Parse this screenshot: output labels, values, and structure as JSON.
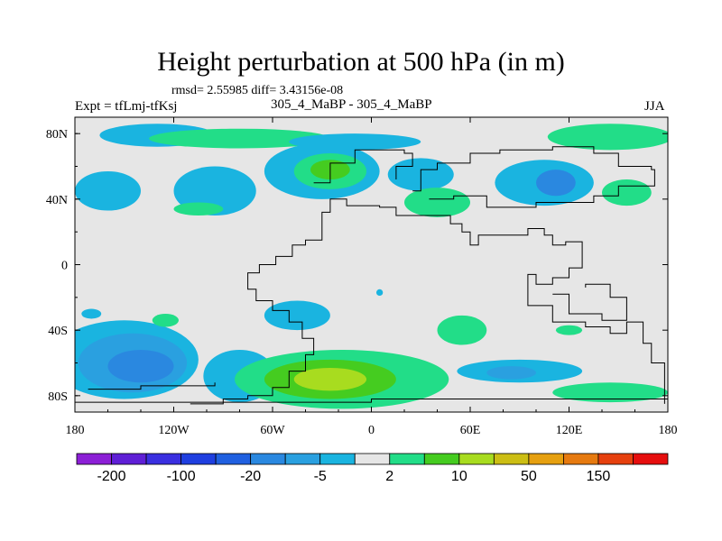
{
  "title": "Height perturbation at 500 hPa (in m)",
  "stats": "rmsd= 2.55985 diff= 3.43156e-08",
  "left_label": "Expt = tfLmj-tfKsj",
  "center_label": "305_4_MaBP - 305_4_MaBP",
  "right_label": "JJA",
  "map": {
    "lon_range": [
      -180,
      180
    ],
    "lat_range": [
      -90,
      90
    ],
    "background_color": "#e6e6e6",
    "lon_ticks": [
      {
        "value": -180,
        "label": "180"
      },
      {
        "value": -120,
        "label": "120W"
      },
      {
        "value": -60,
        "label": "60W"
      },
      {
        "value": 0,
        "label": "0"
      },
      {
        "value": 60,
        "label": "60E"
      },
      {
        "value": 120,
        "label": "120E"
      },
      {
        "value": 180,
        "label": "180"
      }
    ],
    "lat_ticks": [
      {
        "value": 80,
        "label": "80N"
      },
      {
        "value": 40,
        "label": "40N"
      },
      {
        "value": 0,
        "label": "0"
      },
      {
        "value": -40,
        "label": "40S"
      },
      {
        "value": -80,
        "label": "80S"
      }
    ]
  },
  "colorbar": {
    "colors": [
      "#8c1fd6",
      "#5f1fd6",
      "#3a2fe0",
      "#1f3fe0",
      "#2060e0",
      "#2a88e0",
      "#2aa0e0",
      "#1ab4e0",
      "#e6e6e6",
      "#22dd88",
      "#45cc20",
      "#a8dc1f",
      "#ccbe14",
      "#e6a010",
      "#e67a10",
      "#e6400e",
      "#e60e0e"
    ],
    "labels": [
      "-200",
      "-100",
      "-20",
      "-5",
      "2",
      "10",
      "50",
      "150"
    ]
  },
  "field_blobs": [
    {
      "lon": -130,
      "lat": 79,
      "rlon": 35,
      "rlat": 7,
      "color": "#1ab4e0"
    },
    {
      "lon": -80,
      "lat": 77,
      "rlon": 55,
      "rlat": 6,
      "color": "#22dd88"
    },
    {
      "lon": -10,
      "lat": 75,
      "rlon": 40,
      "rlat": 5,
      "color": "#1ab4e0"
    },
    {
      "lon": 145,
      "lat": 78,
      "rlon": 38,
      "rlat": 8,
      "color": "#22dd88"
    },
    {
      "lon": -160,
      "lat": 45,
      "rlon": 20,
      "rlat": 12,
      "color": "#1ab4e0"
    },
    {
      "lon": -95,
      "lat": 45,
      "rlon": 25,
      "rlat": 15,
      "color": "#1ab4e0"
    },
    {
      "lon": -105,
      "lat": 34,
      "rlon": 15,
      "rlat": 4,
      "color": "#22dd88"
    },
    {
      "lon": -30,
      "lat": 57,
      "rlon": 35,
      "rlat": 17,
      "color": "#1ab4e0"
    },
    {
      "lon": -25,
      "lat": 57,
      "rlon": 22,
      "rlat": 11,
      "color": "#22dd88"
    },
    {
      "lon": -25,
      "lat": 58,
      "rlon": 12,
      "rlat": 6,
      "color": "#45cc20"
    },
    {
      "lon": 30,
      "lat": 55,
      "rlon": 20,
      "rlat": 10,
      "color": "#1ab4e0"
    },
    {
      "lon": 40,
      "lat": 38,
      "rlon": 20,
      "rlat": 9,
      "color": "#22dd88"
    },
    {
      "lon": 105,
      "lat": 50,
      "rlon": 30,
      "rlat": 14,
      "color": "#1ab4e0"
    },
    {
      "lon": 112,
      "lat": 50,
      "rlon": 12,
      "rlat": 8,
      "color": "#2a88e0"
    },
    {
      "lon": 155,
      "lat": 44,
      "rlon": 15,
      "rlat": 8,
      "color": "#22dd88"
    },
    {
      "lon": -45,
      "lat": -31,
      "rlon": 20,
      "rlat": 9,
      "color": "#1ab4e0"
    },
    {
      "lon": -150,
      "lat": -58,
      "rlon": 45,
      "rlat": 24,
      "color": "#1ab4e0"
    },
    {
      "lon": -145,
      "lat": -60,
      "rlon": 33,
      "rlat": 18,
      "color": "#2aa0e0"
    },
    {
      "lon": -140,
      "lat": -62,
      "rlon": 20,
      "rlat": 10,
      "color": "#2a88e0"
    },
    {
      "lon": -80,
      "lat": -68,
      "rlon": 22,
      "rlat": 16,
      "color": "#1ab4e0"
    },
    {
      "lon": -18,
      "lat": -70,
      "rlon": 65,
      "rlat": 18,
      "color": "#22dd88"
    },
    {
      "lon": -25,
      "lat": -70,
      "rlon": 40,
      "rlat": 12,
      "color": "#45cc20"
    },
    {
      "lon": -25,
      "lat": -70,
      "rlon": 22,
      "rlat": 7,
      "color": "#a8dc1f"
    },
    {
      "lon": -125,
      "lat": -34,
      "rlon": 8,
      "rlat": 4,
      "color": "#22dd88"
    },
    {
      "lon": -170,
      "lat": -30,
      "rlon": 6,
      "rlat": 3,
      "color": "#1ab4e0"
    },
    {
      "lon": 55,
      "lat": -40,
      "rlon": 15,
      "rlat": 9,
      "color": "#22dd88"
    },
    {
      "lon": 90,
      "lat": -65,
      "rlon": 38,
      "rlat": 7,
      "color": "#1ab4e0"
    },
    {
      "lon": 85,
      "lat": -66,
      "rlon": 15,
      "rlat": 4,
      "color": "#2aa0e0"
    },
    {
      "lon": 145,
      "lat": -78,
      "rlon": 35,
      "rlat": 6,
      "color": "#22dd88"
    },
    {
      "lon": 120,
      "lat": -40,
      "rlon": 8,
      "rlat": 3,
      "color": "#22dd88"
    },
    {
      "lon": 5,
      "lat": -17,
      "rlon": 2,
      "rlat": 2,
      "color": "#1ab4e0"
    }
  ],
  "continents": [
    [
      [
        -110,
        -85
      ],
      [
        -90,
        -82
      ],
      [
        -75,
        -80
      ],
      [
        -60,
        -75
      ],
      [
        -50,
        -65
      ],
      [
        -40,
        -55
      ],
      [
        -35,
        -45
      ],
      [
        -42,
        -35
      ],
      [
        -50,
        -28
      ],
      [
        -60,
        -22
      ],
      [
        -70,
        -15
      ],
      [
        -75,
        -5
      ],
      [
        -68,
        0
      ],
      [
        -58,
        5
      ],
      [
        -48,
        12
      ],
      [
        -40,
        15
      ],
      [
        -30,
        32
      ],
      [
        -25,
        40
      ],
      [
        -15,
        36
      ],
      [
        5,
        35
      ],
      [
        15,
        30
      ],
      [
        35,
        30
      ],
      [
        48,
        25
      ],
      [
        55,
        20
      ],
      [
        60,
        12
      ],
      [
        65,
        18
      ],
      [
        75,
        18
      ],
      [
        95,
        22
      ],
      [
        105,
        18
      ],
      [
        110,
        12
      ],
      [
        118,
        14
      ],
      [
        128,
        -2
      ],
      [
        120,
        -8
      ],
      [
        110,
        -12
      ],
      [
        100,
        -6
      ],
      [
        95,
        -25
      ],
      [
        110,
        -35
      ],
      [
        130,
        -38
      ],
      [
        145,
        -42
      ],
      [
        155,
        -35
      ],
      [
        165,
        -48
      ],
      [
        170,
        -60
      ],
      [
        178,
        -70
      ],
      [
        178,
        -85
      ]
    ],
    [
      [
        25,
        45
      ],
      [
        30,
        58
      ],
      [
        40,
        62
      ],
      [
        60,
        68
      ],
      [
        78,
        70
      ],
      [
        110,
        72
      ],
      [
        135,
        68
      ],
      [
        150,
        60
      ],
      [
        170,
        58
      ],
      [
        172,
        48
      ],
      [
        150,
        42
      ],
      [
        135,
        38
      ],
      [
        100,
        35
      ],
      [
        70,
        42
      ],
      [
        50,
        40
      ],
      [
        35,
        40
      ]
    ],
    [
      [
        -35,
        50
      ],
      [
        -25,
        62
      ],
      [
        -10,
        70
      ],
      [
        20,
        68
      ],
      [
        25,
        60
      ],
      [
        15,
        52
      ]
    ],
    [
      [
        -180,
        -84
      ],
      [
        -120,
        -84
      ],
      [
        -60,
        -84
      ],
      [
        0,
        -82
      ],
      [
        60,
        -82
      ],
      [
        120,
        -82
      ],
      [
        180,
        -84
      ]
    ],
    [
      [
        110,
        -18
      ],
      [
        120,
        -30
      ],
      [
        140,
        -34
      ],
      [
        155,
        -20
      ],
      [
        145,
        -12
      ],
      [
        130,
        -14
      ]
    ],
    [
      [
        -172,
        -76
      ],
      [
        -140,
        -74
      ],
      [
        -110,
        -74
      ],
      [
        -95,
        -72
      ]
    ]
  ]
}
